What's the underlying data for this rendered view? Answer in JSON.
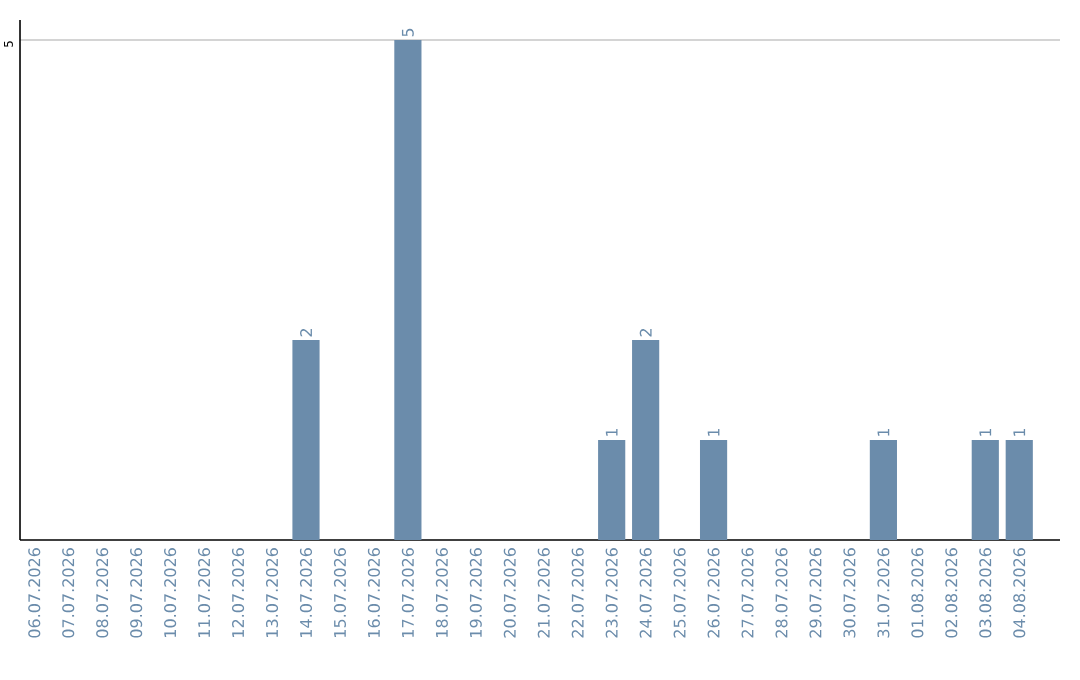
{
  "chart_data": {
    "type": "bar",
    "categories": [
      "06.07.2026",
      "07.07.2026",
      "08.07.2026",
      "09.07.2026",
      "10.07.2026",
      "11.07.2026",
      "12.07.2026",
      "13.07.2026",
      "14.07.2026",
      "15.07.2026",
      "16.07.2026",
      "17.07.2026",
      "18.07.2026",
      "19.07.2026",
      "20.07.2026",
      "21.07.2026",
      "22.07.2026",
      "23.07.2026",
      "24.07.2026",
      "25.07.2026",
      "26.07.2026",
      "27.07.2026",
      "28.07.2026",
      "29.07.2026",
      "30.07.2026",
      "31.07.2026",
      "01.08.2026",
      "02.08.2026",
      "03.08.2026",
      "04.08.2026"
    ],
    "values": [
      0,
      0,
      0,
      0,
      0,
      0,
      0,
      0,
      2,
      0,
      0,
      5,
      0,
      0,
      0,
      0,
      0,
      1,
      2,
      0,
      1,
      0,
      0,
      0,
      0,
      1,
      0,
      0,
      1,
      1
    ],
    "value_labels": [
      null,
      null,
      null,
      null,
      null,
      null,
      null,
      null,
      "2",
      null,
      null,
      "5",
      null,
      null,
      null,
      null,
      null,
      "1",
      "2",
      null,
      "1",
      null,
      null,
      null,
      null,
      "1",
      null,
      null,
      "1",
      "1"
    ],
    "color": "#6b8cab",
    "ylim": [
      0,
      5.2
    ],
    "yticks": [
      5
    ],
    "grid": "y"
  }
}
